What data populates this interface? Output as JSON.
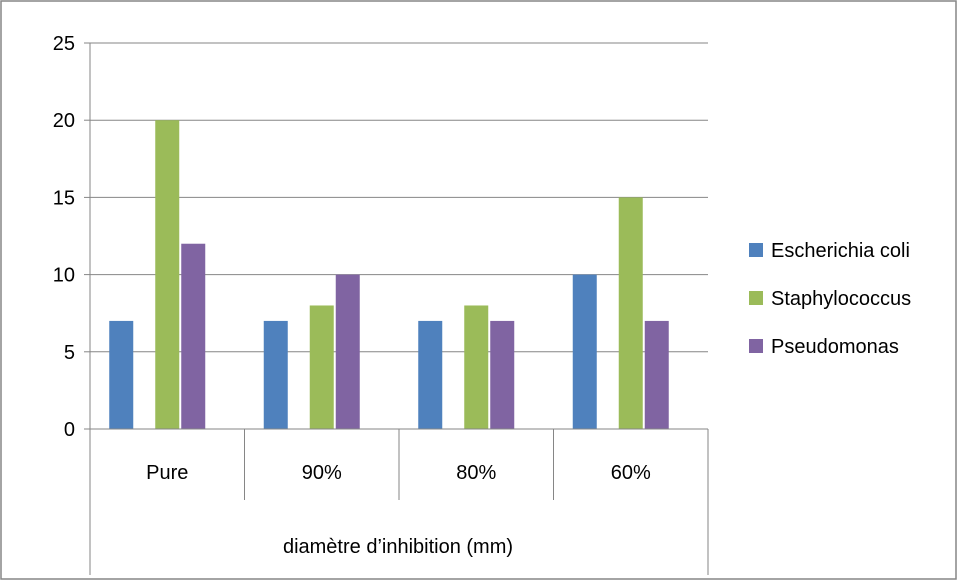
{
  "chart_data": {
    "type": "bar",
    "categories": [
      "Pure",
      "90%",
      "80%",
      "60%"
    ],
    "series": [
      {
        "name": "Escherichia coli",
        "color": "#4F81BD",
        "values": [
          7,
          7,
          7,
          10
        ]
      },
      {
        "name": "Staphylococcus",
        "color": "#9BBB59",
        "values": [
          20,
          8,
          8,
          15
        ]
      },
      {
        "name": "Pseudomonas",
        "color": "#8064A2",
        "values": [
          12,
          10,
          7,
          7
        ]
      }
    ],
    "xlabel": "diamètre d’inhibition (mm)",
    "ylabel": "",
    "ylim": [
      0,
      25
    ],
    "yticks": [
      "0",
      "5",
      "10",
      "15",
      "20",
      "25"
    ],
    "grid": true,
    "legend_position": "right"
  }
}
